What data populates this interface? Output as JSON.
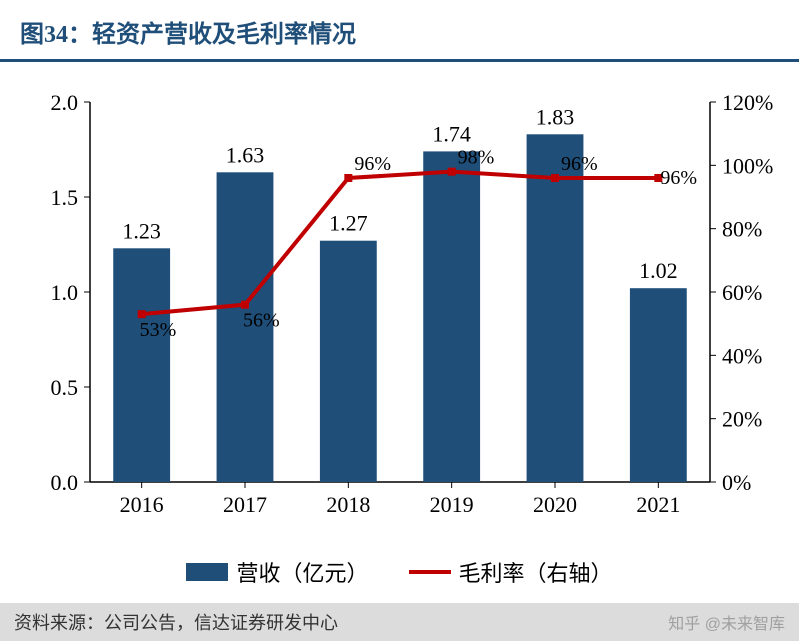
{
  "title": "图34：轻资产营收及毛利率情况",
  "source_label": "资料来源：公司公告，信达证券研发中心",
  "watermark": "知乎 @未来智库",
  "chart": {
    "type": "bar+line",
    "categories": [
      "2016",
      "2017",
      "2018",
      "2019",
      "2020",
      "2021"
    ],
    "bar_series": {
      "name": "营收（亿元）",
      "values": [
        1.23,
        1.63,
        1.27,
        1.74,
        1.83,
        1.02
      ],
      "color": "#1f4e79"
    },
    "line_series": {
      "name": "毛利率（右轴）",
      "values_pct": [
        53,
        56,
        96,
        98,
        96,
        96
      ],
      "color": "#c00000",
      "line_width": 4,
      "marker": "square",
      "marker_size": 8
    },
    "left_axis": {
      "min": 0.0,
      "max": 2.0,
      "step": 0.5,
      "tick_labels": [
        "0.0",
        "0.5",
        "1.0",
        "1.5",
        "2.0"
      ]
    },
    "right_axis": {
      "min": 0,
      "max": 120,
      "step": 20,
      "tick_labels": [
        "0%",
        "20%",
        "40%",
        "60%",
        "80%",
        "100%",
        "120%"
      ]
    },
    "background_color": "#ffffff",
    "axis_color": "#000000",
    "tick_font_size": 22,
    "bar_label_font_size": 22,
    "line_label_font_size": 20,
    "title_fontsize": 24,
    "title_color": "#1f4e79",
    "bar_width_ratio": 0.55
  },
  "legend": {
    "items": [
      "营收（亿元）",
      "毛利率（右轴）"
    ]
  }
}
